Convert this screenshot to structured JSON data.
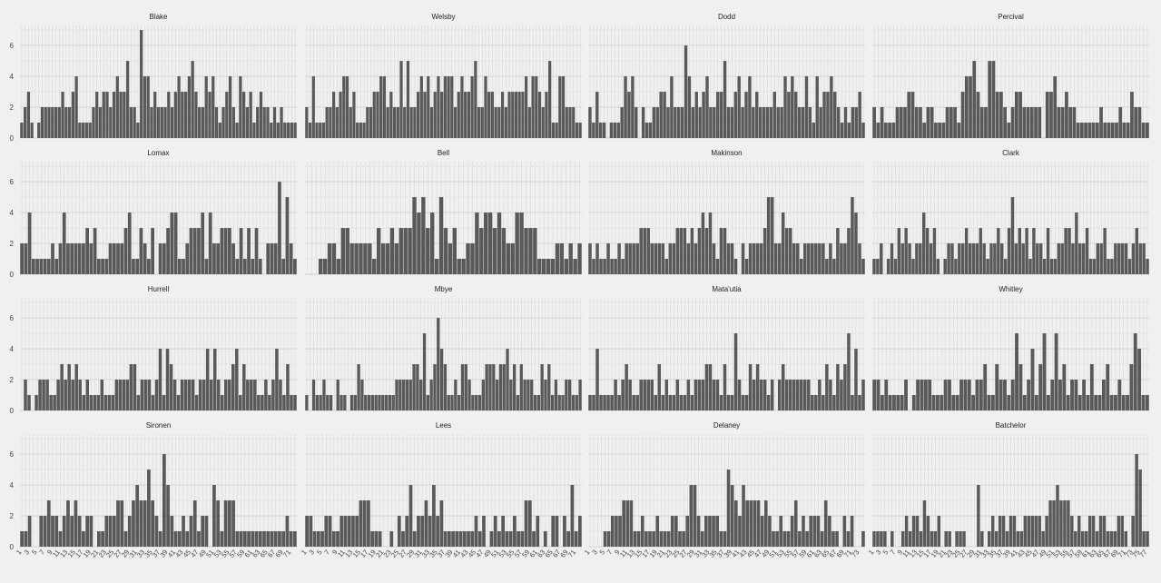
{
  "chart_data": {
    "type": "bar",
    "layout": "facet-grid",
    "facet_columns": 4,
    "ylim": [
      0,
      7.3
    ],
    "y_ticks": [
      0,
      2,
      4,
      6
    ],
    "x_tick_labels": [
      "1",
      "3",
      "5",
      "7",
      "9",
      "11",
      "13",
      "15",
      "17",
      "19",
      "21",
      "23",
      "25",
      "27",
      "29",
      "31",
      "33",
      "35",
      "37",
      "39",
      "41",
      "43",
      "45",
      "47",
      "49",
      "51",
      "53",
      "55",
      "57",
      "59",
      "61",
      "63",
      "65",
      "67",
      "69",
      "71",
      "73",
      "75",
      "77",
      "79",
      "81",
      "83",
      "85",
      "87",
      "89",
      "91",
      "93",
      "95",
      "97"
    ],
    "x_tick_labels_shown_on": "bottom-row",
    "grid": true,
    "bar_color": "#595959",
    "panels": [
      {
        "title": "Blake",
        "values": [
          1,
          2,
          3,
          1,
          0,
          1,
          2,
          2,
          2,
          2,
          2,
          2,
          3,
          2,
          2,
          3,
          4,
          1,
          1,
          1,
          1,
          2,
          3,
          2,
          3,
          3,
          2,
          3,
          4,
          3,
          3,
          5,
          2,
          2,
          1,
          7,
          4,
          4,
          2,
          3,
          2,
          2,
          2,
          3,
          2,
          3,
          4,
          3,
          3,
          4,
          5,
          3,
          2,
          2,
          4,
          3,
          4,
          2,
          1,
          2,
          3,
          4,
          2,
          1,
          4,
          3,
          2,
          3,
          1,
          2,
          3,
          2,
          2,
          1,
          2,
          1,
          2,
          1,
          1,
          1,
          1
        ]
      },
      {
        "title": "Welsby",
        "values": [
          2,
          1,
          4,
          1,
          1,
          1,
          2,
          2,
          3,
          2,
          3,
          4,
          4,
          2,
          3,
          1,
          1,
          1,
          2,
          2,
          3,
          3,
          4,
          4,
          2,
          3,
          2,
          2,
          5,
          2,
          5,
          2,
          2,
          3,
          4,
          3,
          4,
          2,
          3,
          4,
          3,
          4,
          4,
          4,
          2,
          3,
          4,
          3,
          3,
          4,
          5,
          2,
          2,
          4,
          3,
          3,
          2,
          2,
          3,
          2,
          3,
          3,
          3,
          3,
          3,
          4,
          2,
          4,
          4,
          3,
          2,
          3,
          5,
          1,
          1,
          4,
          4,
          2,
          2,
          2,
          1,
          1
        ]
      },
      {
        "title": "Dodd",
        "values": [
          2,
          1,
          3,
          1,
          1,
          0,
          1,
          1,
          1,
          2,
          4,
          3,
          4,
          2,
          0,
          2,
          1,
          1,
          2,
          2,
          3,
          3,
          2,
          4,
          2,
          2,
          2,
          6,
          4,
          2,
          3,
          2,
          3,
          4,
          2,
          2,
          3,
          3,
          5,
          2,
          2,
          3,
          4,
          2,
          3,
          4,
          2,
          3,
          2,
          2,
          2,
          2,
          3,
          2,
          2,
          4,
          3,
          4,
          3,
          2,
          2,
          4,
          2,
          1,
          4,
          2,
          3,
          3,
          4,
          3,
          2,
          1,
          2,
          1,
          2,
          2,
          3,
          1
        ]
      },
      {
        "title": "Percival",
        "values": [
          2,
          1,
          2,
          1,
          1,
          1,
          2,
          2,
          2,
          3,
          3,
          2,
          2,
          1,
          2,
          2,
          1,
          1,
          1,
          2,
          2,
          2,
          1,
          3,
          4,
          4,
          5,
          3,
          2,
          2,
          5,
          5,
          3,
          3,
          2,
          1,
          2,
          3,
          3,
          2,
          2,
          2,
          2,
          2,
          0,
          3,
          3,
          4,
          2,
          2,
          3,
          2,
          2,
          1,
          1,
          1,
          1,
          1,
          1,
          2,
          1,
          1,
          1,
          1,
          2,
          1,
          1,
          3,
          2,
          2,
          1,
          1
        ]
      },
      {
        "title": "Lomax",
        "values": [
          2,
          2,
          4,
          1,
          1,
          1,
          1,
          1,
          2,
          1,
          2,
          4,
          2,
          2,
          2,
          2,
          2,
          3,
          2,
          3,
          1,
          1,
          1,
          2,
          2,
          2,
          2,
          3,
          4,
          1,
          1,
          3,
          2,
          1,
          3,
          0,
          2,
          2,
          3,
          4,
          4,
          1,
          1,
          2,
          3,
          3,
          3,
          4,
          1,
          4,
          2,
          2,
          3,
          3,
          3,
          2,
          1,
          3,
          1,
          3,
          1,
          3,
          1,
          0,
          2,
          2,
          2,
          6,
          1,
          5,
          2,
          1
        ]
      },
      {
        "title": "Bell",
        "values": [
          0,
          0,
          0,
          1,
          1,
          2,
          2,
          1,
          3,
          3,
          2,
          2,
          2,
          2,
          2,
          1,
          3,
          2,
          2,
          3,
          2,
          3,
          3,
          3,
          5,
          4,
          5,
          3,
          4,
          1,
          5,
          3,
          2,
          3,
          1,
          1,
          2,
          2,
          4,
          3,
          4,
          4,
          3,
          4,
          3,
          2,
          2,
          4,
          4,
          3,
          3,
          3,
          1,
          1,
          1,
          1,
          2,
          2,
          1,
          2,
          1,
          2
        ]
      },
      {
        "title": "Makinson",
        "values": [
          2,
          1,
          2,
          1,
          1,
          2,
          1,
          1,
          2,
          1,
          2,
          2,
          2,
          2,
          3,
          3,
          3,
          2,
          2,
          2,
          2,
          1,
          2,
          2,
          3,
          3,
          3,
          2,
          3,
          2,
          3,
          4,
          3,
          4,
          2,
          1,
          3,
          3,
          2,
          2,
          1,
          0,
          2,
          1,
          2,
          2,
          2,
          2,
          3,
          5,
          5,
          2,
          2,
          4,
          3,
          3,
          2,
          2,
          1,
          2,
          2,
          2,
          2,
          2,
          2,
          1,
          2,
          1,
          3,
          2,
          2,
          3,
          5,
          4,
          2,
          1
        ]
      },
      {
        "title": "Clark",
        "values": [
          1,
          1,
          2,
          0,
          1,
          2,
          1,
          3,
          2,
          3,
          2,
          1,
          2,
          2,
          4,
          3,
          2,
          3,
          1,
          0,
          1,
          2,
          2,
          1,
          2,
          2,
          3,
          2,
          2,
          2,
          3,
          2,
          1,
          2,
          2,
          3,
          2,
          1,
          3,
          5,
          2,
          3,
          2,
          3,
          1,
          3,
          2,
          2,
          1,
          3,
          1,
          1,
          2,
          2,
          3,
          3,
          2,
          4,
          2,
          2,
          3,
          1,
          1,
          2,
          2,
          3,
          1,
          1,
          2,
          2,
          2,
          2,
          1,
          2,
          3,
          2,
          2,
          1
        ]
      },
      {
        "title": "Hurrell",
        "values": [
          0,
          2,
          1,
          0,
          1,
          2,
          2,
          2,
          1,
          1,
          2,
          3,
          2,
          3,
          2,
          3,
          2,
          1,
          2,
          1,
          1,
          1,
          2,
          1,
          1,
          1,
          2,
          2,
          2,
          2,
          3,
          3,
          1,
          2,
          2,
          2,
          1,
          2,
          4,
          1,
          4,
          3,
          2,
          1,
          2,
          2,
          2,
          2,
          1,
          2,
          2,
          4,
          2,
          4,
          2,
          1,
          2,
          2,
          3,
          4,
          1,
          3,
          2,
          2,
          2,
          1,
          1,
          2,
          1,
          2,
          4,
          2,
          1,
          3,
          1,
          1
        ]
      },
      {
        "title": "Mbye",
        "values": [
          1,
          0,
          2,
          1,
          1,
          2,
          1,
          1,
          0,
          2,
          1,
          1,
          0,
          1,
          1,
          3,
          2,
          1,
          1,
          1,
          1,
          1,
          1,
          1,
          1,
          1,
          2,
          2,
          2,
          2,
          2,
          3,
          3,
          2,
          5,
          1,
          2,
          3,
          6,
          4,
          3,
          1,
          1,
          2,
          1,
          3,
          3,
          2,
          1,
          1,
          1,
          2,
          3,
          3,
          3,
          2,
          3,
          3,
          4,
          2,
          3,
          1,
          3,
          2,
          2,
          2,
          1,
          1,
          3,
          2,
          3,
          1,
          2,
          1,
          1,
          2,
          2,
          1,
          1,
          2
        ]
      },
      {
        "title": "Mata'utia",
        "values": [
          1,
          1,
          4,
          1,
          1,
          1,
          1,
          2,
          1,
          2,
          3,
          2,
          1,
          1,
          2,
          2,
          2,
          2,
          1,
          3,
          1,
          2,
          1,
          1,
          2,
          1,
          1,
          2,
          1,
          2,
          2,
          2,
          3,
          3,
          2,
          2,
          1,
          3,
          1,
          1,
          5,
          2,
          1,
          1,
          3,
          2,
          3,
          2,
          2,
          1,
          2,
          0,
          2,
          3,
          2,
          2,
          2,
          2,
          2,
          2,
          2,
          1,
          1,
          2,
          1,
          3,
          2,
          1,
          3,
          2,
          3,
          5,
          1,
          4,
          1,
          2
        ]
      },
      {
        "title": "Whitley",
        "values": [
          2,
          2,
          1,
          2,
          1,
          1,
          1,
          1,
          2,
          0,
          1,
          2,
          2,
          2,
          2,
          1,
          1,
          1,
          2,
          2,
          1,
          1,
          2,
          2,
          2,
          1,
          2,
          2,
          3,
          1,
          1,
          3,
          2,
          2,
          1,
          2,
          5,
          3,
          1,
          2,
          4,
          1,
          3,
          5,
          1,
          2,
          5,
          2,
          3,
          1,
          2,
          2,
          1,
          2,
          1,
          3,
          1,
          1,
          2,
          3,
          1,
          1,
          2,
          1,
          1,
          3,
          5,
          4,
          1,
          1
        ]
      },
      {
        "title": "Sironen",
        "values": [
          1,
          1,
          2,
          0,
          0,
          2,
          2,
          3,
          2,
          2,
          1,
          2,
          3,
          2,
          3,
          2,
          1,
          2,
          2,
          0,
          1,
          1,
          2,
          2,
          2,
          3,
          3,
          1,
          2,
          3,
          4,
          3,
          3,
          5,
          3,
          2,
          1,
          6,
          4,
          2,
          1,
          1,
          2,
          1,
          2,
          3,
          1,
          2,
          2,
          0,
          4,
          3,
          1,
          3,
          3,
          3,
          1,
          1,
          1,
          1,
          1,
          1,
          1,
          1,
          1,
          1,
          1,
          1,
          1,
          2,
          1,
          1
        ]
      },
      {
        "title": "Lees",
        "values": [
          2,
          2,
          1,
          1,
          1,
          2,
          2,
          1,
          1,
          2,
          2,
          2,
          2,
          2,
          3,
          3,
          3,
          1,
          1,
          1,
          0,
          0,
          1,
          0,
          2,
          1,
          2,
          4,
          1,
          2,
          2,
          3,
          2,
          4,
          2,
          3,
          1,
          1,
          1,
          1,
          1,
          1,
          1,
          1,
          2,
          1,
          2,
          0,
          1,
          2,
          1,
          2,
          1,
          1,
          2,
          1,
          1,
          3,
          3,
          1,
          2,
          0,
          1,
          0,
          2,
          2,
          0,
          2,
          1,
          4,
          1,
          2
        ]
      },
      {
        "title": "Delaney",
        "values": [
          0,
          0,
          0,
          0,
          1,
          1,
          2,
          2,
          2,
          3,
          3,
          3,
          1,
          1,
          2,
          1,
          1,
          1,
          2,
          1,
          1,
          1,
          2,
          2,
          1,
          1,
          2,
          4,
          4,
          2,
          1,
          2,
          2,
          2,
          2,
          1,
          1,
          5,
          4,
          3,
          2,
          4,
          3,
          3,
          3,
          3,
          2,
          3,
          2,
          1,
          1,
          2,
          1,
          1,
          2,
          3,
          1,
          2,
          1,
          2,
          2,
          2,
          1,
          3,
          2,
          1,
          1,
          0,
          2,
          1,
          2,
          0,
          0,
          1
        ]
      },
      {
        "title": "Batchelor",
        "values": [
          1,
          1,
          1,
          1,
          0,
          1,
          0,
          0,
          1,
          2,
          1,
          2,
          2,
          1,
          3,
          2,
          1,
          1,
          2,
          0,
          1,
          1,
          0,
          1,
          1,
          1,
          0,
          0,
          0,
          4,
          1,
          0,
          1,
          2,
          1,
          2,
          2,
          1,
          2,
          2,
          1,
          1,
          2,
          2,
          2,
          2,
          2,
          1,
          2,
          3,
          3,
          4,
          3,
          3,
          3,
          2,
          1,
          2,
          1,
          1,
          2,
          2,
          1,
          2,
          2,
          1,
          1,
          1,
          2,
          2,
          1,
          0,
          2,
          6,
          5,
          1,
          1
        ]
      }
    ]
  }
}
